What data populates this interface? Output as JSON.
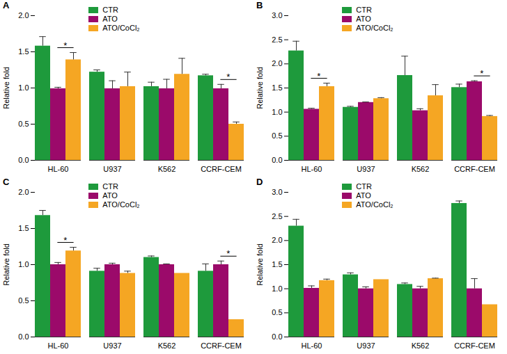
{
  "chart_data": [
    {
      "type": "bar",
      "title": "A",
      "y_label": "Relative fold",
      "categories": [
        "HL-60",
        "U937",
        "K562",
        "CCRF-CEM"
      ],
      "series": [
        {
          "name": "CTR",
          "color": "#1e9a3c",
          "values": [
            1.58,
            1.22,
            1.02,
            1.17
          ],
          "errors": [
            0.13,
            0.03,
            0.06,
            0.02
          ]
        },
        {
          "name": "ATO",
          "color": "#9b0a6a",
          "values": [
            0.99,
            0.99,
            0.99,
            0.99
          ],
          "errors": [
            0.02,
            0.11,
            0.13,
            0.06
          ]
        },
        {
          "name": "ATO/CoCl₂",
          "color": "#f5a623",
          "values": [
            1.39,
            1.02,
            1.19,
            0.5
          ],
          "errors": [
            0.1,
            0.2,
            0.22,
            0.03
          ]
        }
      ],
      "ylim": [
        0,
        2
      ],
      "yticks": [
        {
          "value": 0,
          "label": "0.0"
        },
        {
          "value": 0.5,
          "label": "0.5"
        },
        {
          "value": 1,
          "label": "1.0"
        },
        {
          "value": 1.5,
          "label": "1.5"
        },
        {
          "value": 2,
          "label": "2.0"
        }
      ],
      "annotations": [
        {
          "text": "*",
          "category": "HL-60",
          "between": [
            "ATO",
            "ATO/CoCl₂"
          ]
        },
        {
          "text": "*",
          "category": "CCRF-CEM",
          "between": [
            "ATO",
            "ATO/CoCl₂"
          ]
        }
      ],
      "legend": "top",
      "grid": false
    },
    {
      "type": "bar",
      "title": "B",
      "y_label": "Relative fold",
      "categories": [
        "HL-60",
        "U937",
        "K562",
        "CCRF-CEM"
      ],
      "series": [
        {
          "name": "CTR",
          "color": "#1e9a3c",
          "values": [
            2.27,
            1.1,
            1.76,
            1.51
          ],
          "errors": [
            0.2,
            0.02,
            0.4,
            0.07
          ]
        },
        {
          "name": "ATO",
          "color": "#9b0a6a",
          "values": [
            1.06,
            1.2,
            1.03,
            1.63
          ],
          "errors": [
            0.02,
            0.01,
            0.04,
            0.02
          ]
        },
        {
          "name": "ATO/CoCl₂",
          "color": "#f5a623",
          "values": [
            1.53,
            1.28,
            1.34,
            0.91
          ],
          "errors": [
            0.07,
            0.02,
            0.23,
            0.02
          ]
        }
      ],
      "ylim": [
        0,
        3
      ],
      "yticks": [
        {
          "value": 0,
          "label": "0.0"
        },
        {
          "value": 0.5,
          "label": "0.5"
        },
        {
          "value": 1,
          "label": "1.0"
        },
        {
          "value": 1.5,
          "label": "1.5"
        },
        {
          "value": 2,
          "label": "2.0"
        },
        {
          "value": 2.5,
          "label": "2.5"
        },
        {
          "value": 3,
          "label": "3.0"
        }
      ],
      "annotations": [
        {
          "text": "*",
          "category": "HL-60",
          "between": [
            "ATO",
            "ATO/CoCl₂"
          ]
        },
        {
          "text": "*",
          "category": "CCRF-CEM",
          "between": [
            "ATO",
            "ATO/CoCl₂"
          ]
        }
      ],
      "legend": "top",
      "grid": false
    },
    {
      "type": "bar",
      "title": "C",
      "y_label": "Relative fold",
      "categories": [
        "HL-60",
        "U937",
        "K562",
        "CCRF-CEM"
      ],
      "series": [
        {
          "name": "CTR",
          "color": "#1e9a3c",
          "values": [
            1.68,
            0.91,
            1.1,
            0.91
          ],
          "errors": [
            0.07,
            0.04,
            0.02,
            0.1
          ]
        },
        {
          "name": "ATO",
          "color": "#9b0a6a",
          "values": [
            1.0,
            1.0,
            1.0,
            1.0
          ],
          "errors": [
            0.03,
            0.02,
            0.01,
            0.05
          ]
        },
        {
          "name": "ATO/CoCl₂",
          "color": "#f5a623",
          "values": [
            1.19,
            0.88,
            0.88,
            0.24
          ],
          "errors": [
            0.05,
            0.03,
            0,
            0
          ]
        }
      ],
      "ylim": [
        0,
        2
      ],
      "yticks": [
        {
          "value": 0,
          "label": "0.0"
        },
        {
          "value": 0.5,
          "label": "0.5"
        },
        {
          "value": 1,
          "label": "1.0"
        },
        {
          "value": 1.5,
          "label": "1.5"
        },
        {
          "value": 2,
          "label": "2.0"
        }
      ],
      "annotations": [
        {
          "text": "*",
          "category": "HL-60",
          "between": [
            "ATO",
            "ATO/CoCl₂"
          ]
        },
        {
          "text": "*",
          "category": "CCRF-CEM",
          "between": [
            "ATO",
            "ATO/CoCl₂"
          ]
        }
      ],
      "legend": "top",
      "grid": false
    },
    {
      "type": "bar",
      "title": "D",
      "y_label": "Relative fold",
      "categories": [
        "HL-60",
        "U937",
        "K562",
        "CCRF-CEM"
      ],
      "series": [
        {
          "name": "CTR",
          "color": "#1e9a3c",
          "values": [
            2.3,
            1.29,
            1.09,
            2.77
          ],
          "errors": [
            0.14,
            0.04,
            0.03,
            0.05
          ]
        },
        {
          "name": "ATO",
          "color": "#9b0a6a",
          "values": [
            1.01,
            1.0,
            1.0,
            1.0
          ],
          "errors": [
            0.05,
            0.04,
            0.05,
            0.21
          ]
        },
        {
          "name": "ATO/CoCl₂",
          "color": "#f5a623",
          "values": [
            1.17,
            1.19,
            1.21,
            0.67
          ],
          "errors": [
            0.03,
            0,
            0.01,
            0
          ]
        }
      ],
      "ylim": [
        0,
        3
      ],
      "yticks": [
        {
          "value": 0,
          "label": "0.0"
        },
        {
          "value": 0.5,
          "label": "0.5"
        },
        {
          "value": 1,
          "label": "1.0"
        },
        {
          "value": 1.5,
          "label": "1.5"
        },
        {
          "value": 2,
          "label": "2.0"
        },
        {
          "value": 2.5,
          "label": "2.5"
        },
        {
          "value": 3,
          "label": "3.0"
        }
      ],
      "annotations": [],
      "legend": "top",
      "grid": false
    }
  ]
}
